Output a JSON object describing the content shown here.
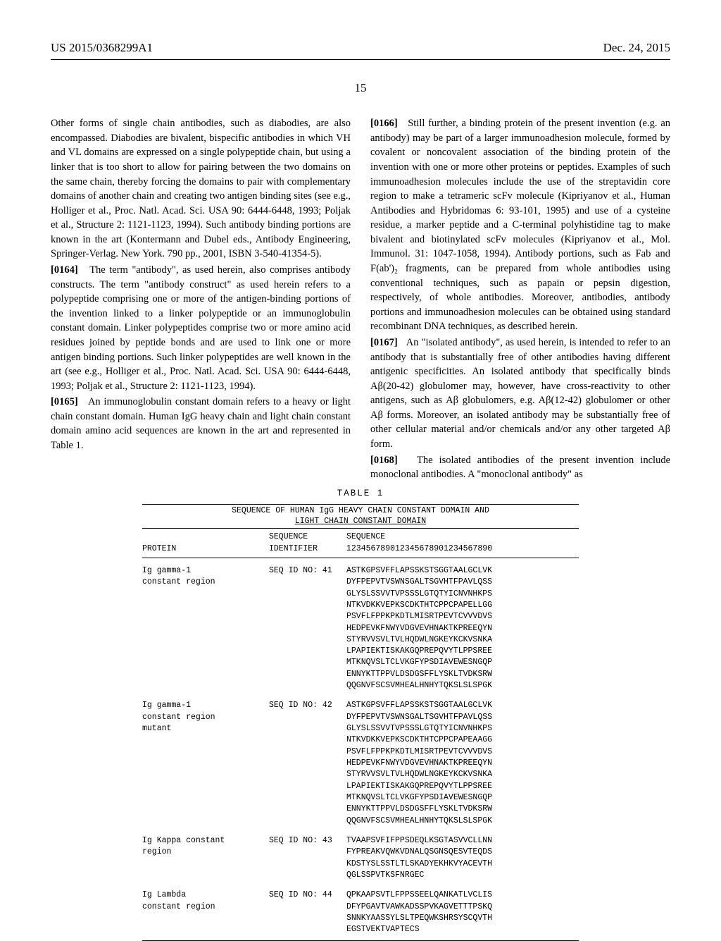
{
  "header": {
    "left": "US 2015/0368299A1",
    "right": "Dec. 24, 2015"
  },
  "pagenum": "15",
  "col1": {
    "p1": "Other forms of single chain antibodies, such as diabodies, are also encompassed. Diabodies are bivalent, bispecific antibodies in which VH and VL domains are expressed on a single polypeptide chain, but using a linker that is too short to allow for pairing between the two domains on the same chain, thereby forcing the domains to pair with complementary domains of another chain and creating two antigen binding sites (see e.g., Holliger et al., Proc. Natl. Acad. Sci. USA 90: 6444-6448, 1993; Poljak et al., Structure 2: 1121-1123, 1994). Such antibody binding portions are known in the art (Kontermann and Dubel eds., Antibody Engineering, Springer-Verlag. New York. 790 pp., 2001, ISBN 3-540-41354-5).",
    "p2num": "[0164]",
    "p2": "The term \"antibody\", as used herein, also comprises antibody constructs. The term \"antibody construct\" as used herein refers to a polypeptide comprising one or more of the antigen-binding portions of the invention linked to a linker polypeptide or an immunoglobulin constant domain. Linker polypeptides comprise two or more amino acid residues joined by peptide bonds and are used to link one or more antigen binding portions. Such linker polypeptides are well known in the art (see e.g., Holliger et al., Proc. Natl. Acad. Sci. USA 90: 6444-6448, 1993; Poljak et al., Structure 2: 1121-1123, 1994).",
    "p3num": "[0165]",
    "p3": "An immunoglobulin constant domain refers to a heavy or light chain constant domain. Human IgG heavy chain and light chain constant domain amino acid sequences are known in the art and represented in Table 1."
  },
  "col2": {
    "p1num": "[0166]",
    "p1": "Still further, a binding protein of the present invention (e.g. an antibody) may be part of a larger immunoadhesion molecule, formed by covalent or noncovalent association of the binding protein of the invention with one or more other proteins or peptides. Examples of such immunoadhesion molecules include the use of the streptavidin core region to make a tetrameric scFv molecule (Kipriyanov et al., Human Antibodies and Hybridomas 6: 93-101, 1995) and use of a cysteine residue, a marker peptide and a C-terminal polyhistidine tag to make bivalent and biotinylated scFv molecules (Kipriyanov et al., Mol. Immunol. 31: 1047-1058, 1994). Antibody portions, such as Fab and F(ab')₂ fragments, can be prepared from whole antibodies using conventional techniques, such as papain or pepsin digestion, respectively, of whole antibodies. Moreover, antibodies, antibody portions and immunoadhesion molecules can be obtained using standard recombinant DNA techniques, as described herein.",
    "p2num": "[0167]",
    "p2": "An \"isolated antibody\", as used herein, is intended to refer to an antibody that is substantially free of other antibodies having different antigenic specificities. An isolated antibody that specifically binds Aβ(20-42) globulomer may, however, have cross-reactivity to other antigens, such as Aβ globulomers, e.g. Aβ(12-42) globulomer or other Aβ forms. Moreover, an isolated antibody may be substantially free of other cellular material and/or chemicals and/or any other targeted Aβ form.",
    "p3num": "[0168]",
    "p3": "The isolated antibodies of the present invention include monoclonal antibodies. A \"monoclonal antibody\" as"
  },
  "table": {
    "caption": "TABLE 1",
    "subhead1": "SEQUENCE OF HUMAN IgG HEAVY CHAIN CONSTANT DOMAIN AND",
    "subhead2": "LIGHT CHAIN CONSTANT DOMAIN",
    "colhead1a": "",
    "colhead1b": "PROTEIN",
    "colhead2a": "SEQUENCE",
    "colhead2b": "IDENTIFIER",
    "colhead3a": "SEQUENCE",
    "colhead3b": "123456789012345678901234567890",
    "rows": [
      {
        "protein": "Ig gamma-1\nconstant region",
        "seqid": "SEQ ID NO: 41",
        "seq": "ASTKGPSVFFLAPSSKSTSGGTAALGCLVK\nDYFPEPVTVSWNSGALTSGVHTFPAVLQSS\nGLYSLSSVVTVPSSSLGTQTYICNVNHKPS\nNTKVDKKVEPKSCDKTHTCPPCPAPELLGG\nPSVFLFPPKPKDTLMISRTPEVTCVVVDVS\nHEDPEVKFNWYVDGVEVHNAKTKPREEQYN\nSTYRVVSVLTVLHQDWLNGKEYKCKVSNKA\nLPAPIEKTISKAKGQPREPQVYTLPPSREE\nMTKNQVSLTCLVKGFYPSDIAVEWESNGQP\nENNYKTTPPVLDSDGSFFLYSKLTVDKSRW\nQQGNVFSCSVMHEALHNHYTQKSLSLSPGK"
      },
      {
        "protein": "Ig gamma-1\nconstant region\nmutant",
        "seqid": "SEQ ID NO: 42",
        "seq": "ASTKGPSVFFLAPSSKSTSGGTAALGCLVK\nDYFPEPVTVSWNSGALTSGVHTFPAVLQSS\nGLYSLSSVVTVPSSSLGTQTYICNVNHKPS\nNTKVDKKVEPKSCDKTHTCPPCPAPEAAGG\nPSVFLFPPKPKDTLMISRTPEVTCVVVDVS\nHEDPEVKFNWYVDGVEVHNAKTKPREEQYN\nSTYRVVSVLTVLHQDWLNGKEYKCKVSNKA\nLPAPIEKTISKAKGQPREPQVYTLPPSREE\nMTKNQVSLTCLVKGFYPSDIAVEWESNGQP\nENNYKTTPPVLDSDGSFFLYSKLTVDKSRW\nQQGNVFSCSVMHEALHNHYTQKSLSLSPGK"
      },
      {
        "protein": "Ig Kappa constant\nregion",
        "seqid": "SEQ ID NO: 43",
        "seq": "TVAAPSVFIFPPSDEQLKSGTASVVCLLNN\nFYPREAKVQWKVDNALQSGNSQESVTEQDS\nKDSTYSLSSTLTLSKADYEKHKVYACEVTH\nQGLSSPVTKSFNRGEC"
      },
      {
        "protein": "Ig Lambda\nconstant region",
        "seqid": "SEQ ID NO: 44",
        "seq": "QPKAAPSVTLFPPSSEELQANKATLVCLIS\nDFYPGAVTVAWKADSSPVKAGVETTTPSKQ\nSNNKYAASSYLSLTPEQWKSHRSYSCQVTH\nEGSTVEKTVAPTECS"
      }
    ]
  }
}
